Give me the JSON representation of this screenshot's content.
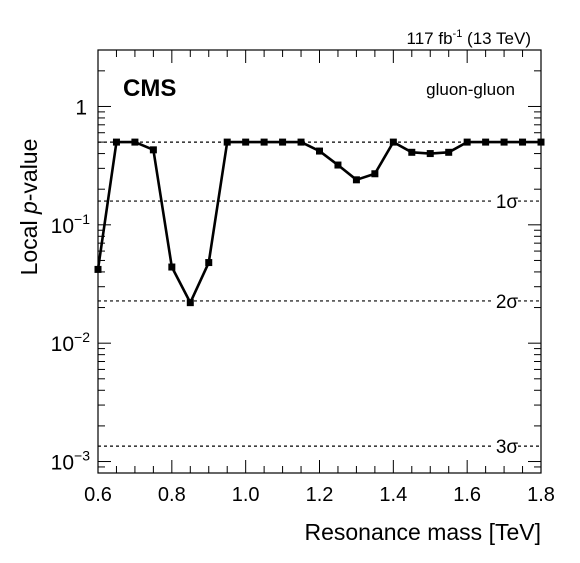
{
  "header": {
    "lumi_value": "117 fb",
    "lumi_exp": "-1",
    "lumi_energy": " (13 TeV)",
    "experiment": "CMS",
    "channel": "gluon-gluon"
  },
  "chart_data": {
    "type": "line",
    "scale_y": "log",
    "xlabel": "Resonance mass [TeV]",
    "ylabel_prefix": "Local ",
    "ylabel_italic": "p",
    "ylabel_suffix": "-value",
    "xlim": [
      0.6,
      1.8
    ],
    "ylim": [
      0.0008,
      3.0
    ],
    "x_ticks": [
      {
        "value": 0.6,
        "label": "0.6"
      },
      {
        "value": 0.8,
        "label": "0.8"
      },
      {
        "value": 1.0,
        "label": "1.0"
      },
      {
        "value": 1.2,
        "label": "1.2"
      },
      {
        "value": 1.4,
        "label": "1.4"
      },
      {
        "value": 1.6,
        "label": "1.6"
      },
      {
        "value": 1.8,
        "label": "1.8"
      }
    ],
    "y_ticks": [
      {
        "value": 1.0,
        "base": "1",
        "exp": ""
      },
      {
        "value": 0.1,
        "base": "10",
        "exp": "−1"
      },
      {
        "value": 0.01,
        "base": "10",
        "exp": "−2"
      },
      {
        "value": 0.001,
        "base": "10",
        "exp": "−3"
      }
    ],
    "reference_lines": [
      {
        "value": 0.5,
        "label": ""
      },
      {
        "value": 0.1587,
        "label": "1σ"
      },
      {
        "value": 0.02275,
        "label": "2σ"
      },
      {
        "value": 0.00135,
        "label": "3σ"
      }
    ],
    "grid": false,
    "series": [
      {
        "x": [
          0.6,
          0.65,
          0.7,
          0.75,
          0.8,
          0.85,
          0.9,
          0.95,
          1.0,
          1.05,
          1.1,
          1.15,
          1.2,
          1.25,
          1.3,
          1.35,
          1.4,
          1.45,
          1.5,
          1.55,
          1.6,
          1.65,
          1.7,
          1.75,
          1.8
        ],
        "y": [
          0.042,
          0.5,
          0.5,
          0.43,
          0.044,
          0.022,
          0.048,
          0.5,
          0.5,
          0.5,
          0.5,
          0.5,
          0.42,
          0.32,
          0.24,
          0.27,
          0.5,
          0.41,
          0.4,
          0.41,
          0.5,
          0.5,
          0.5,
          0.5,
          0.5
        ],
        "color": "#000000"
      }
    ]
  }
}
